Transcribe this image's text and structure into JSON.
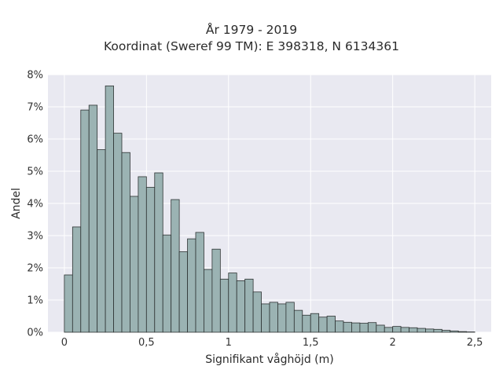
{
  "chart_data": {
    "type": "bar",
    "title": "År 1979 - 2019",
    "subtitle": "Koordinat (Sweref 99 TM): E 398318, N 6134361",
    "xlabel": "Signifikant våghöjd (m)",
    "ylabel": "Andel",
    "xlim": [
      -0.1,
      2.6
    ],
    "ylim": [
      0,
      8
    ],
    "y_unit": "%",
    "xticks": [
      0,
      0.5,
      1,
      1.5,
      2,
      2.5
    ],
    "xtick_labels": [
      "0",
      "0,5",
      "1",
      "1,5",
      "2",
      "2,5"
    ],
    "yticks": [
      0,
      1,
      2,
      3,
      4,
      5,
      6,
      7,
      8
    ],
    "ytick_labels": [
      "0%",
      "1%",
      "2%",
      "3%",
      "4%",
      "5%",
      "6%",
      "7%",
      "8%"
    ],
    "grid": true,
    "bin_start": 0,
    "bin_width": 0.05,
    "values": [
      1.78,
      3.27,
      6.9,
      7.05,
      5.67,
      7.65,
      6.18,
      5.58,
      4.22,
      4.83,
      4.5,
      4.95,
      3.02,
      4.12,
      2.5,
      2.9,
      3.1,
      1.95,
      2.58,
      1.65,
      1.84,
      1.6,
      1.65,
      1.25,
      0.88,
      0.93,
      0.88,
      0.93,
      0.68,
      0.53,
      0.58,
      0.47,
      0.5,
      0.35,
      0.31,
      0.29,
      0.28,
      0.3,
      0.22,
      0.15,
      0.18,
      0.15,
      0.14,
      0.12,
      0.1,
      0.09,
      0.06,
      0.04,
      0.02,
      0.01
    ],
    "colors": {
      "bar_fill": "#9bb3b3",
      "bar_stroke": "#2e3333",
      "plot_bg": "#e9e9f1",
      "grid": "#ffffff"
    }
  }
}
